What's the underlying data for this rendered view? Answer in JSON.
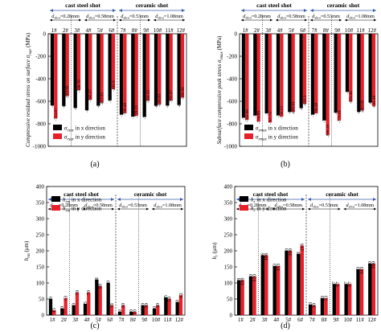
{
  "chart_data": [
    {
      "type": "bar",
      "panel_label": "(a)",
      "ylabel": "Compressive residual stress on surface σ_rsur (MPa)",
      "ylim": [
        -1000,
        0
      ],
      "yticks": [
        "0",
        "-200",
        "-400",
        "-600",
        "-800",
        "-1000"
      ],
      "group_labels": [
        "cast steel shot",
        "ceramic shot"
      ],
      "size_labels": [
        "d_shot=0.28mm",
        "d_shot=0.58mm",
        "d_shot=0.53mm",
        "d_shot=1.08mm"
      ],
      "categories": [
        "1#",
        "2#",
        "3#",
        "4#",
        "5#",
        "6#",
        "7#",
        "8#",
        "9#",
        "10#",
        "11#",
        "12#"
      ],
      "series": [
        {
          "name": "σ_rsur in x direction",
          "color": "#000000",
          "values": [
            -635.65,
            -641.55,
            -658.4,
            -678.54,
            -638.25,
            -591.6,
            -718.5,
            -736.14,
            -738.98,
            -639.84,
            -637.21,
            -633.02
          ]
        },
        {
          "name": "σ_rsur in y direction",
          "color": "#e8202a",
          "values": [
            -752.87,
            -552.95,
            -500.76,
            -585.57,
            -612.92,
            -491.9,
            -706.48,
            -729.23,
            -594.33,
            -626.93,
            -593.07,
            -566.99
          ]
        }
      ],
      "value_labels": [
        [
          "-635.65",
          "-641.55",
          "-658.4",
          "-678.54",
          "-638.25",
          "-591.6",
          "-718.5",
          "-736.14",
          "-738.98",
          "-639.84",
          "-637.21",
          "-633.02"
        ],
        [
          "-752.87",
          "-552.95",
          "-500.76",
          "-585.57",
          "-612.92",
          "-491.9",
          "-706.48",
          "-729.23",
          "-594.33",
          "-626.93",
          "-593.07",
          "-566.99"
        ]
      ]
    },
    {
      "type": "bar",
      "panel_label": "(b)",
      "ylabel": "Subsurface compressive peak stress σ_rmax (MPa)",
      "ylim": [
        -1000,
        0
      ],
      "yticks": [
        "0",
        "-200",
        "-400",
        "-600",
        "-800",
        "-1000"
      ],
      "group_labels": [
        "cast steel shot",
        "ceramic shot"
      ],
      "size_labels": [
        "d_shot=0.28mm",
        "d_shot=0.58mm",
        "d_shot=0.53mm",
        "d_shot=1.08mm"
      ],
      "categories": [
        "1#",
        "2#",
        "3#",
        "4#",
        "5#",
        "6#",
        "7#",
        "8#",
        "9#",
        "10#",
        "11#",
        "12#"
      ],
      "series": [
        {
          "name": "σ_rmax in x direction",
          "color": "#000000",
          "values": [
            -746.06,
            -726.45,
            -706.54,
            -725.32,
            -693.63,
            -659.96,
            -718.5,
            -770.2,
            -699.45,
            -515.36,
            -693.5,
            -611.69
          ]
        },
        {
          "name": "σ_rmax in y direction",
          "color": "#e8202a",
          "values": [
            -765.68,
            -779.89,
            -787.73,
            -736.13,
            -695.01,
            -622.3,
            -706.48,
            -899.28,
            -771.01,
            -601.46,
            -682.05,
            -641.48
          ]
        }
      ],
      "value_labels": [
        [
          "-746.06",
          "-726.45",
          "-706.54",
          "-725.32",
          "-693.63",
          "-659.96",
          "-718.5",
          "-770.2",
          "-699.45",
          "-515.36",
          "-693.5",
          "-611.69"
        ],
        [
          "-765.68",
          "-779.89",
          "-787.73",
          "-736.13",
          "-695.01",
          "-622.3",
          "-706.48",
          "-899.28",
          "-771.01",
          "-601.46",
          "-682.05",
          "-641.48"
        ]
      ]
    },
    {
      "type": "bar",
      "panel_label": "(c)",
      "ylabel": "h_rm (μm)",
      "ylim": [
        0,
        400
      ],
      "yticks": [
        "0",
        "50",
        "100",
        "150",
        "200",
        "250",
        "300",
        "350",
        "400"
      ],
      "group_labels": [
        "cast steel shot",
        "ceramic shot"
      ],
      "size_labels": [
        "d_shot=0.28mm",
        "d_shot=0.58mm",
        "d_shot=0.53mm",
        "d_shot=1.08mm"
      ],
      "categories": [
        "1#",
        "2#",
        "3#",
        "4#",
        "5#",
        "6#",
        "7#",
        "8#",
        "9#",
        "10#",
        "11#",
        "12#"
      ],
      "series": [
        {
          "name": "h_rm in x direction",
          "color": "#000000",
          "values": [
            50,
            20,
            30,
            35,
            111,
            100,
            10,
            10,
            30,
            20,
            55,
            40
          ]
        },
        {
          "name": "h_rm in y direction",
          "color": "#e8202a",
          "values": [
            15,
            53,
            70,
            70,
            90,
            31,
            30,
            10,
            30,
            30,
            50,
            62
          ]
        }
      ],
      "value_labels": [
        [
          "50",
          "20",
          "30",
          "35",
          "111",
          "100",
          "10",
          "10",
          "30",
          "20",
          "55",
          "40"
        ],
        [
          "15",
          "53",
          "70",
          "70",
          "90",
          "31",
          "30",
          "10",
          "30",
          "30",
          "50",
          "62"
        ]
      ]
    },
    {
      "type": "bar",
      "panel_label": "(d)",
      "ylabel": "h_r (μm)",
      "ylim": [
        0,
        400
      ],
      "yticks": [
        "0",
        "50",
        "100",
        "150",
        "200",
        "250",
        "300",
        "350",
        "400"
      ],
      "group_labels": [
        "cast steel shot",
        "ceramic shot"
      ],
      "size_labels": [
        "d_shot=0.28mm",
        "d_shot=0.58mm",
        "d_shot=0.53mm",
        "d_shot=1.08mm"
      ],
      "categories": [
        "1#",
        "2#",
        "3#",
        "4#",
        "5#",
        "6#",
        "7#",
        "8#",
        "9#",
        "10#",
        "11#",
        "12#"
      ],
      "series": [
        {
          "name": "h_r in x direction",
          "color": "#000000",
          "values": [
            108,
            120,
            186,
            153,
            200,
            191,
            33,
            53,
            97,
            97,
            143,
            160
          ]
        },
        {
          "name": "h_r in y direction",
          "color": "#e8202a",
          "values": [
            109,
            120,
            186,
            153,
            200,
            216,
            30,
            53,
            97,
            97,
            143,
            160
          ]
        }
      ],
      "value_labels": [
        [
          "108",
          "120",
          "186",
          "153",
          "200",
          "191",
          "33",
          "53",
          "97",
          "97",
          "143",
          "160"
        ],
        [
          "109",
          "120",
          "186",
          "153",
          "200",
          "216",
          "30",
          "53",
          "97",
          "97",
          "143",
          "160"
        ]
      ]
    }
  ]
}
